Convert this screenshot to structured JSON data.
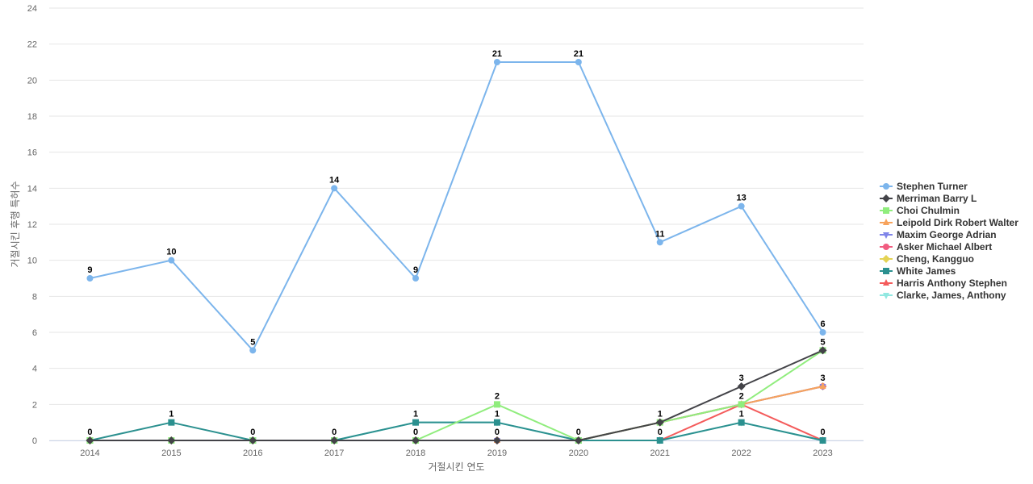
{
  "chart_data": {
    "type": "line",
    "xlabel": "거절시킨 연도",
    "ylabel": "거절시킨 후행 특허수",
    "ylim": [
      0,
      24
    ],
    "y_ticks": [
      0,
      2,
      4,
      6,
      8,
      10,
      12,
      14,
      16,
      18,
      20,
      22,
      24
    ],
    "categories": [
      "2014",
      "2015",
      "2016",
      "2017",
      "2018",
      "2019",
      "2020",
      "2021",
      "2022",
      "2023"
    ],
    "grid": "horizontal",
    "legend_position": "right",
    "series": [
      {
        "name": "Stephen Turner",
        "color": "#7cb5ec",
        "marker": "circle",
        "values": [
          9,
          10,
          5,
          14,
          9,
          21,
          21,
          11,
          13,
          6
        ],
        "labels": true
      },
      {
        "name": "Merriman Barry L",
        "color": "#434348",
        "marker": "diamond",
        "values": [
          0,
          0,
          0,
          0,
          0,
          0,
          0,
          1,
          3,
          5
        ],
        "label_indices": [
          8
        ]
      },
      {
        "name": "Choi Chulmin",
        "color": "#90ed7d",
        "marker": "square",
        "values": [
          0,
          0,
          0,
          0,
          0,
          2,
          0,
          1,
          2,
          5
        ],
        "label_indices": [
          5,
          7,
          9
        ]
      },
      {
        "name": "Leipold Dirk Robert Walter",
        "color": "#f7a35c",
        "marker": "triangle",
        "values": [
          0,
          0,
          0,
          0,
          0,
          0,
          0,
          1,
          2,
          3
        ],
        "label_indices": [
          9
        ]
      },
      {
        "name": "Maxim George Adrian",
        "color": "#8085e9",
        "marker": "triangle-down",
        "values": [
          0,
          0,
          0,
          0,
          0,
          0,
          0,
          1,
          2,
          3
        ],
        "label_indices": []
      },
      {
        "name": "Asker Michael Albert",
        "color": "#f15c80",
        "marker": "circle",
        "values": [
          0,
          0,
          0,
          0,
          0,
          0,
          0,
          1,
          2,
          3
        ],
        "label_indices": []
      },
      {
        "name": "Cheng, Kangguo",
        "color": "#e4d354",
        "marker": "diamond",
        "values": [
          0,
          0,
          0,
          0,
          0,
          0,
          0,
          1,
          2,
          3
        ],
        "label_indices": []
      },
      {
        "name": "White James",
        "color": "#2b908f",
        "marker": "square",
        "values": [
          0,
          1,
          0,
          0,
          1,
          1,
          0,
          0,
          1,
          0
        ],
        "label_indices": [
          0,
          1
        ]
      },
      {
        "name": "Harris Anthony Stephen",
        "color": "#f45b5b",
        "marker": "triangle",
        "values": [
          0,
          0,
          0,
          0,
          0,
          0,
          0,
          0,
          2,
          0
        ],
        "label_indices": [
          2,
          4,
          5,
          6,
          7,
          8,
          9
        ]
      },
      {
        "name": "Clarke, James, Anthony",
        "color": "#91e8e1",
        "marker": "triangle-down",
        "values": [
          0,
          0,
          0,
          0,
          1,
          1,
          0,
          0,
          1,
          0
        ],
        "label_indices": [
          3,
          4,
          5,
          8
        ]
      }
    ]
  }
}
